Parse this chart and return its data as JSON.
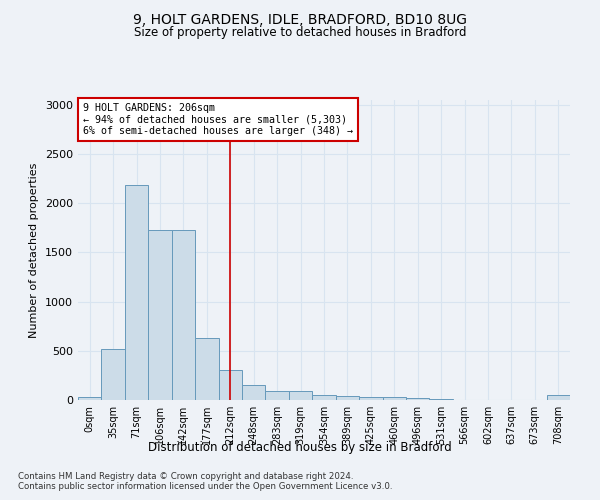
{
  "title_line1": "9, HOLT GARDENS, IDLE, BRADFORD, BD10 8UG",
  "title_line2": "Size of property relative to detached houses in Bradford",
  "xlabel": "Distribution of detached houses by size in Bradford",
  "ylabel": "Number of detached properties",
  "categories": [
    "0sqm",
    "35sqm",
    "71sqm",
    "106sqm",
    "142sqm",
    "177sqm",
    "212sqm",
    "248sqm",
    "283sqm",
    "319sqm",
    "354sqm",
    "389sqm",
    "425sqm",
    "460sqm",
    "496sqm",
    "531sqm",
    "566sqm",
    "602sqm",
    "637sqm",
    "673sqm",
    "708sqm"
  ],
  "values": [
    30,
    520,
    2185,
    1730,
    1730,
    635,
    300,
    155,
    90,
    90,
    55,
    40,
    30,
    30,
    20,
    10,
    5,
    5,
    0,
    0,
    50
  ],
  "bar_color": "#ccdce8",
  "bar_edgecolor": "#6699bb",
  "vline_x_index": 6,
  "vline_color": "#cc0000",
  "annotation_title": "9 HOLT GARDENS: 206sqm",
  "annotation_line1": "← 94% of detached houses are smaller (5,303)",
  "annotation_line2": "6% of semi-detached houses are larger (348) →",
  "annotation_box_color": "#ffffff",
  "annotation_box_edgecolor": "#cc0000",
  "ylim": [
    0,
    3050
  ],
  "yticks": [
    0,
    500,
    1000,
    1500,
    2000,
    2500,
    3000
  ],
  "footnote_line1": "Contains HM Land Registry data © Crown copyright and database right 2024.",
  "footnote_line2": "Contains public sector information licensed under the Open Government Licence v3.0.",
  "background_color": "#eef2f7",
  "grid_color": "#d8e4f0"
}
